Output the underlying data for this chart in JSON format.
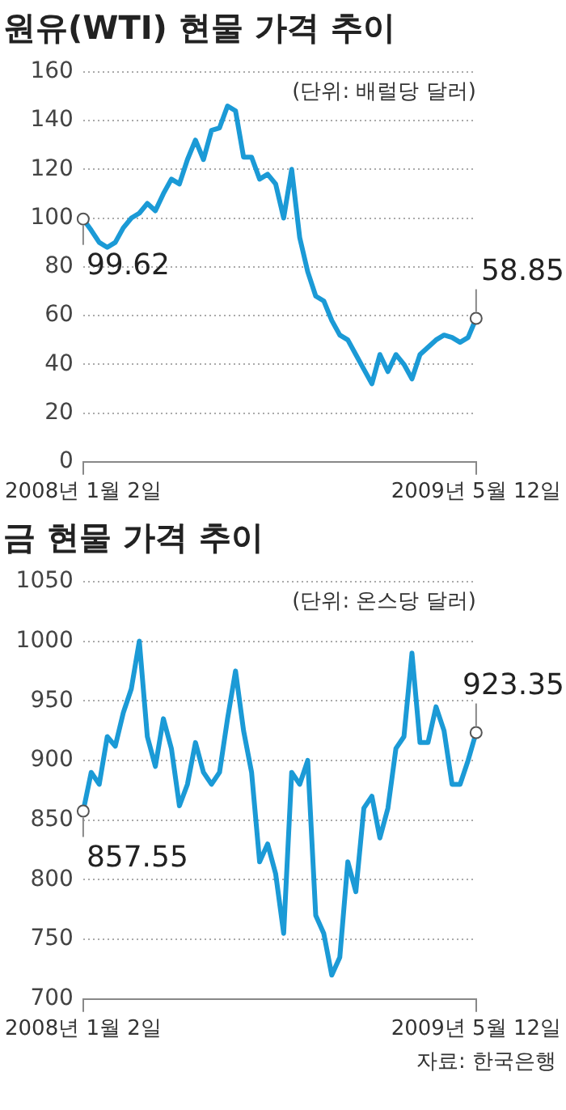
{
  "chart_data": [
    {
      "type": "line",
      "title": "원유(WTI) 현물 가격 추이",
      "subtitle": "(단위: 배럴당 달러)",
      "categories": [
        "2008년 1월 2일",
        null,
        null,
        null,
        null,
        null,
        null,
        null,
        null,
        null,
        null,
        null,
        null,
        null,
        null,
        null,
        null,
        null,
        null,
        null,
        null,
        null,
        null,
        null,
        null,
        null,
        null,
        null,
        null,
        null,
        null,
        null,
        null,
        null,
        null,
        null,
        null,
        null,
        null,
        null,
        null,
        null,
        null,
        null,
        null,
        null,
        null,
        null,
        null,
        "2009년 5월 12일"
      ],
      "series": [
        {
          "color": "#1b9ad6",
          "values": [
            99.62,
            95,
            90,
            88,
            90,
            96,
            100,
            102,
            106,
            103,
            110,
            116,
            114,
            124,
            132,
            124,
            136,
            137,
            146,
            144,
            125,
            125,
            116,
            118,
            114,
            100,
            120,
            92,
            78,
            68,
            66,
            58,
            52,
            50,
            44,
            38,
            32,
            44,
            37,
            44,
            40,
            34,
            44,
            47,
            50,
            52,
            51,
            49,
            51,
            58.85
          ],
          "value_labels": [
            "99.62",
            null,
            null,
            null,
            null,
            null,
            null,
            null,
            null,
            null,
            null,
            null,
            null,
            null,
            null,
            null,
            null,
            null,
            null,
            null,
            null,
            null,
            null,
            null,
            null,
            null,
            null,
            null,
            null,
            null,
            null,
            null,
            null,
            null,
            null,
            null,
            null,
            null,
            null,
            null,
            null,
            null,
            null,
            null,
            null,
            null,
            null,
            null,
            null,
            "58.85"
          ]
        }
      ],
      "ylim": [
        0,
        160
      ],
      "yticks": [
        0,
        20,
        40,
        60,
        80,
        100,
        120,
        140,
        160
      ],
      "grid": "y",
      "legend": false
    },
    {
      "type": "line",
      "title": "금 현물 가격 추이",
      "subtitle": "(단위: 온스당 달러)",
      "categories": [
        "2008년 1월 2일",
        null,
        null,
        null,
        null,
        null,
        null,
        null,
        null,
        null,
        null,
        null,
        null,
        null,
        null,
        null,
        null,
        null,
        null,
        null,
        null,
        null,
        null,
        null,
        null,
        null,
        null,
        null,
        null,
        null,
        null,
        null,
        null,
        null,
        null,
        null,
        null,
        null,
        null,
        null,
        null,
        null,
        null,
        null,
        null,
        null,
        null,
        null,
        null,
        "2009년 5월 12일"
      ],
      "series": [
        {
          "color": "#1b9ad6",
          "values": [
            857.55,
            890,
            880,
            920,
            912,
            940,
            960,
            1000,
            920,
            895,
            935,
            910,
            862,
            880,
            915,
            890,
            880,
            890,
            935,
            975,
            925,
            890,
            815,
            830,
            805,
            755,
            890,
            880,
            900,
            770,
            755,
            720,
            735,
            815,
            790,
            860,
            870,
            835,
            860,
            910,
            920,
            990,
            915,
            915,
            945,
            925,
            880,
            880,
            900,
            923.35
          ],
          "value_labels": [
            "857.55",
            null,
            null,
            null,
            null,
            null,
            null,
            null,
            null,
            null,
            null,
            null,
            null,
            null,
            null,
            null,
            null,
            null,
            null,
            null,
            null,
            null,
            null,
            null,
            null,
            null,
            null,
            null,
            null,
            null,
            null,
            null,
            null,
            null,
            null,
            null,
            null,
            null,
            null,
            null,
            null,
            null,
            null,
            null,
            null,
            null,
            null,
            null,
            null,
            "923.35"
          ]
        }
      ],
      "ylim": [
        700,
        1050
      ],
      "yticks": [
        700,
        750,
        800,
        850,
        900,
        950,
        1000,
        1050
      ],
      "grid": "y",
      "legend": false,
      "annotations": [
        "자료: 한국은행"
      ]
    }
  ]
}
